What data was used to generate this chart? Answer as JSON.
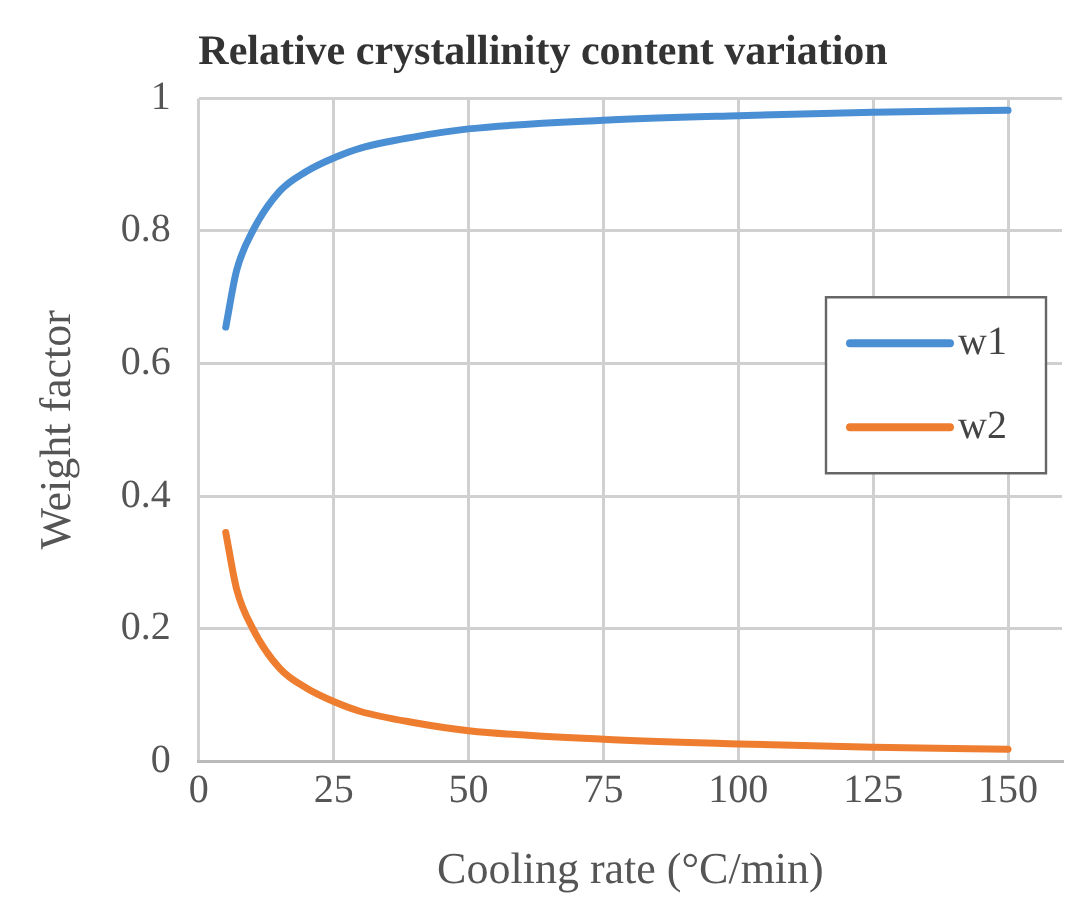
{
  "chart_data": {
    "type": "line",
    "title": "Relative crystallinity content variation",
    "xlabel": "Cooling rate (°C/min)",
    "ylabel": "Weight factor",
    "x": [
      5,
      7,
      10,
      15,
      20,
      25,
      30,
      40,
      50,
      75,
      100,
      125,
      150
    ],
    "series": [
      {
        "name": "w1",
        "color": "#4a8fd4",
        "values": [
          0.655,
          0.74,
          0.8,
          0.86,
          0.89,
          0.91,
          0.925,
          0.942,
          0.954,
          0.967,
          0.974,
          0.979,
          0.982
        ]
      },
      {
        "name": "w2",
        "color": "#ee7d2f",
        "values": [
          0.345,
          0.26,
          0.2,
          0.14,
          0.11,
          0.09,
          0.075,
          0.058,
          0.046,
          0.033,
          0.026,
          0.021,
          0.018
        ]
      }
    ],
    "xlim": [
      0,
      160
    ],
    "xticks": [
      0,
      25,
      50,
      75,
      100,
      125,
      150
    ],
    "ylim": [
      0,
      1
    ],
    "yticks": [
      0,
      0.2,
      0.4,
      0.6,
      0.8,
      1
    ],
    "grid": true,
    "legend": "right",
    "marker": "none",
    "line_style": "solid"
  }
}
